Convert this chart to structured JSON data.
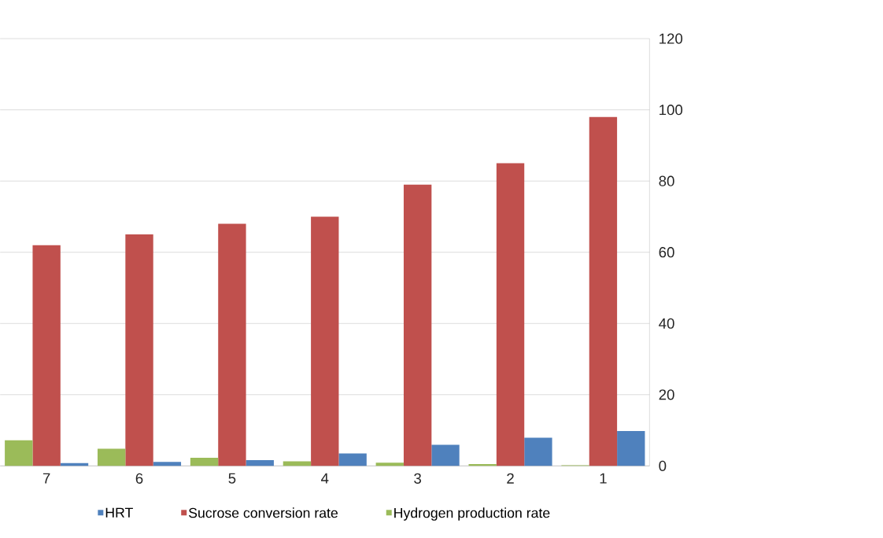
{
  "chart_data": {
    "type": "bar",
    "categories": [
      "7",
      "6",
      "5",
      "4",
      "3",
      "2",
      "1"
    ],
    "series": [
      {
        "name": "HRT",
        "color": "#4f81bd",
        "values": [
          0.8,
          1.1,
          1.6,
          3.5,
          5.9,
          7.9,
          9.8
        ]
      },
      {
        "name": "Sucrose conversion rate",
        "color": "#c0504d",
        "values": [
          62,
          65,
          68,
          70,
          79,
          85,
          98
        ]
      },
      {
        "name": "Hydrogen production rate",
        "color": "#9bbb59",
        "values": [
          7.2,
          4.8,
          2.3,
          1.3,
          0.9,
          0.5,
          0.2
        ]
      }
    ],
    "ylim": [
      0,
      120
    ],
    "yticks": [
      0,
      20,
      40,
      60,
      80,
      100,
      120
    ],
    "grid": "y",
    "legend": "bottom"
  }
}
